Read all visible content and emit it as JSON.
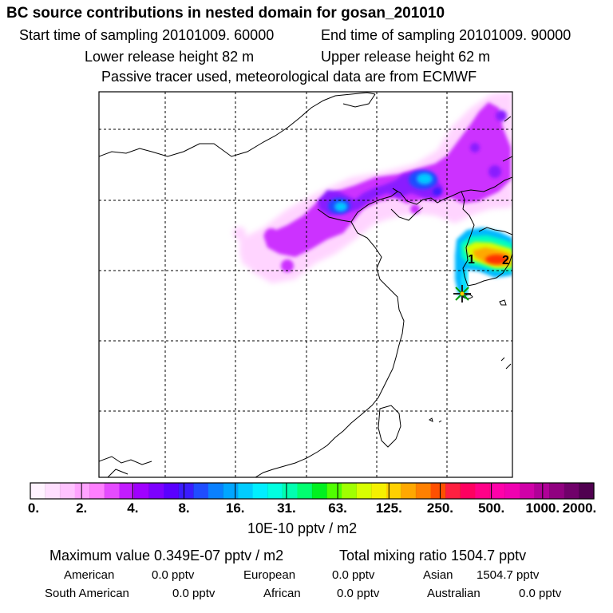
{
  "header": {
    "title": "BC  source contributions in nested domain for gosan_201010",
    "start_time": "Start time of sampling 20101009. 60000",
    "end_time": "End time of sampling 20101009. 90000",
    "lower_height": "Lower release height   82 m",
    "upper_height": "Upper release height   62 m",
    "tracer_note": "Passive tracer used, meteorological data are from ECMWF"
  },
  "map": {
    "markers": {
      "label_1": "1",
      "label_2": "2"
    }
  },
  "colorbar": {
    "ticks": [
      "0.",
      "2.",
      "4.",
      "8.",
      "16.",
      "31.",
      "63.",
      "125.",
      "250.",
      "500.",
      "1000.",
      "2000."
    ],
    "unit": "10E-10 pptv / m2",
    "colors": [
      "#fff3ff",
      "#ffdfff",
      "#ffc3ff",
      "#ffa3ff",
      "#ff7fff",
      "#e54bff",
      "#c21cff",
      "#a000ff",
      "#7d00ff",
      "#5a00ff",
      "#3a1cff",
      "#1f4dff",
      "#0a80ff",
      "#00a6ff",
      "#00ccff",
      "#00eeff",
      "#00ffe0",
      "#00ffb0",
      "#00ff70",
      "#00f020",
      "#50ff00",
      "#a0ff00",
      "#d8ff00",
      "#f5f000",
      "#ffd000",
      "#ffa800",
      "#ff8000",
      "#ff5000",
      "#ff2040",
      "#ff0060",
      "#ff0088",
      "#ff00aa",
      "#f000b0",
      "#d000a8",
      "#b00098",
      "#900080",
      "#70006a",
      "#500050"
    ]
  },
  "summary": {
    "max_value": "Maximum value  0.349E-07 pptv / m2",
    "total": "Total mixing ratio     1504.7 pptv",
    "rows": [
      [
        {
          "name": "American",
          "val": "0.0 pptv"
        },
        {
          "name": "European",
          "val": "0.0 pptv"
        },
        {
          "name": "Asian",
          "val": "1504.7 pptv"
        }
      ],
      [
        {
          "name": "South American",
          "val": "0.0 pptv"
        },
        {
          "name": "African",
          "val": "0.0 pptv"
        },
        {
          "name": "Australian",
          "val": "0.0 pptv"
        }
      ]
    ]
  }
}
